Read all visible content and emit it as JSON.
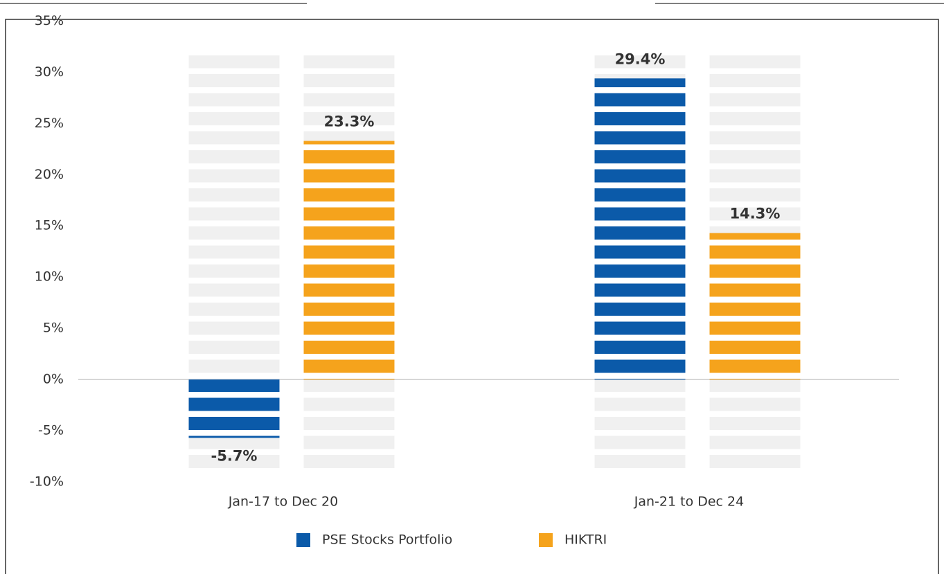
{
  "chart_data": {
    "type": "bar",
    "categories": [
      "Jan-17 to Dec 20",
      "Jan-21 to Dec 24"
    ],
    "series": [
      {
        "name": "PSE Stocks Portfolio",
        "color": "#0b5aa9",
        "values": [
          -5.7,
          29.4
        ],
        "value_labels": [
          "-5.7%",
          "29.4%"
        ]
      },
      {
        "name": "HIKTRI",
        "color": "#f5a31c",
        "values": [
          23.3,
          14.3
        ],
        "value_labels": [
          "23.3%",
          "14.3%"
        ]
      }
    ],
    "ylim": [
      -10,
      35
    ],
    "yticks": [
      {
        "value": -10,
        "label": "-10%"
      },
      {
        "value": -5,
        "label": "-5%"
      },
      {
        "value": 0,
        "label": "0%"
      },
      {
        "value": 5,
        "label": "5%"
      },
      {
        "value": 10,
        "label": "10%"
      },
      {
        "value": 15,
        "label": "15%"
      },
      {
        "value": 20,
        "label": "20%"
      },
      {
        "value": 25,
        "label": "25%"
      },
      {
        "value": 30,
        "label": "30%"
      },
      {
        "value": 35,
        "label": "35%"
      }
    ],
    "legend": "bottom"
  }
}
